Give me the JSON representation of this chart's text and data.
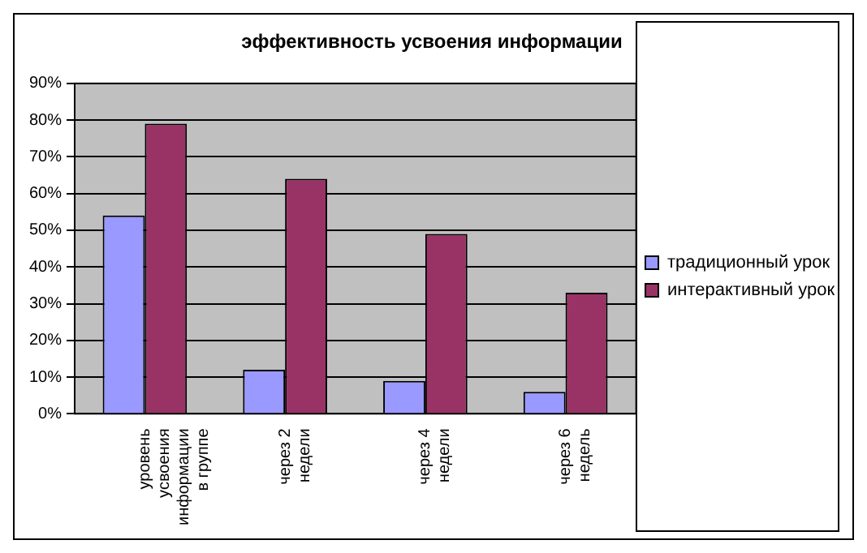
{
  "chart_data": {
    "type": "bar",
    "title": "эффективность усвоения информации",
    "categories": [
      "уровень усвоения информации в группе",
      "через 2 недели",
      "через 4 недели",
      "через 6 недель"
    ],
    "series": [
      {
        "name": "традиционный урок",
        "color": "#9999ff",
        "values": [
          54,
          12,
          9,
          6
        ]
      },
      {
        "name": "интерактивный урок",
        "color": "#993366",
        "values": [
          79,
          64,
          49,
          33
        ]
      }
    ],
    "ylim": [
      0,
      90
    ],
    "yticks": [
      {
        "value": 0,
        "label": "0%"
      },
      {
        "value": 10,
        "label": "10%"
      },
      {
        "value": 20,
        "label": "20%"
      },
      {
        "value": 30,
        "label": "30%"
      },
      {
        "value": 40,
        "label": "40%"
      },
      {
        "value": 50,
        "label": "50%"
      },
      {
        "value": 60,
        "label": "60%"
      },
      {
        "value": 70,
        "label": "70%"
      },
      {
        "value": 80,
        "label": "80%"
      },
      {
        "value": 90,
        "label": "90%"
      }
    ],
    "grid": "y",
    "legend": "right"
  }
}
